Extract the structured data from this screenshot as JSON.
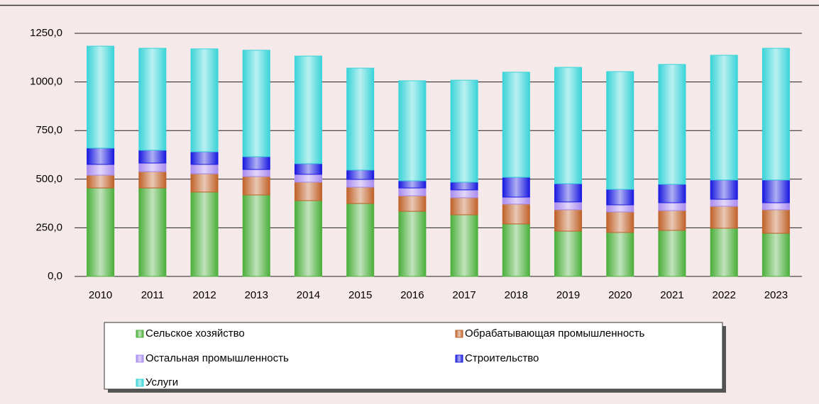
{
  "chart_data": {
    "type": "stacked_bar",
    "categories": [
      "2010",
      "2011",
      "2012",
      "2013",
      "2014",
      "2015",
      "2016",
      "2017",
      "2018",
      "2019",
      "2020",
      "2021",
      "2022",
      "2023"
    ],
    "series": [
      {
        "name": "Сельское хозяйство",
        "color": "#4caf3c",
        "values": [
          455,
          455,
          434,
          419,
          390,
          375,
          335,
          317,
          270,
          233,
          226,
          237,
          248,
          222
        ]
      },
      {
        "name": "Обрабатывающая промышленность",
        "color": "#c0622a",
        "values": [
          66,
          84,
          94,
          95,
          95,
          84,
          80,
          88,
          102,
          110,
          106,
          102,
          113,
          121
        ]
      },
      {
        "name": "Остальная промышленность",
        "color": "#a98cf0",
        "values": [
          55,
          44,
          48,
          36,
          40,
          40,
          40,
          40,
          36,
          40,
          36,
          40,
          36,
          36
        ]
      },
      {
        "name": "Строительство",
        "color": "#1a1ae0",
        "values": [
          84,
          66,
          65,
          66,
          55,
          48,
          37,
          40,
          102,
          94,
          80,
          95,
          99,
          117
        ]
      },
      {
        "name": "Услуги",
        "color": "#3ad4d8",
        "values": [
          524,
          524,
          529,
          547,
          553,
          524,
          514,
          524,
          540,
          598,
          605,
          616,
          641,
          677
        ]
      }
    ],
    "ylim": [
      0,
      1250
    ],
    "yticks": [
      {
        "value": 0,
        "label": "0,0"
      },
      {
        "value": 250,
        "label": "250,0"
      },
      {
        "value": 500,
        "label": "500,0"
      },
      {
        "value": 750,
        "label": "750,0"
      },
      {
        "value": 1000,
        "label": "1000,0"
      },
      {
        "value": 1250,
        "label": "1250,0"
      }
    ],
    "grid": true
  }
}
